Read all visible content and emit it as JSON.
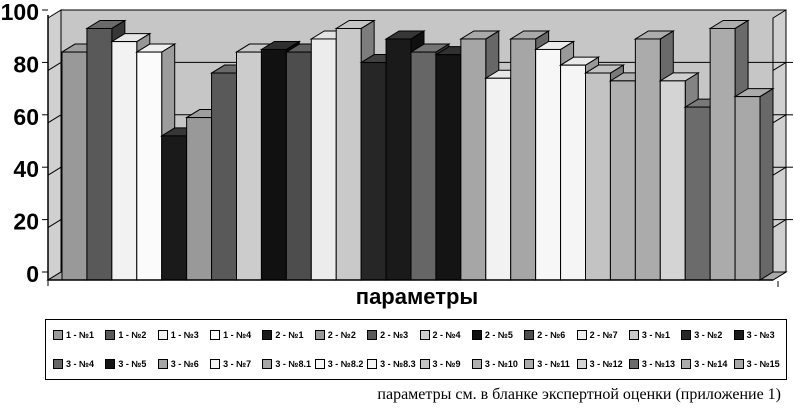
{
  "chart_data": {
    "type": "bar",
    "style": "3d-column-grayscale",
    "title": "",
    "xlabel": "параметры",
    "ylabel": "",
    "ylim": [
      0,
      100
    ],
    "yticks": [
      0,
      20,
      40,
      60,
      80,
      100
    ],
    "grid": true,
    "legend_position": "bottom",
    "categories": [
      "1 - №1",
      "1 - №2",
      "1 - №3",
      "1 - №4",
      "2 - №1",
      "2 - №2",
      "2 - №3",
      "2 - №4",
      "2 - №5",
      "2 - №6",
      "2 - №7",
      "3 - №1",
      "3 - №2",
      "3 - №3",
      "3 - №4",
      "3 - №5",
      "3 - №6",
      "3 - №7",
      "3 - №8.1",
      "3 - №8.2",
      "3 - №8.3",
      "3 - №9",
      "3 - №10",
      "3 - №11",
      "3 - №12",
      "3 - №13",
      "3 - №14",
      "3 - №15"
    ],
    "values": [
      87,
      96,
      91,
      87,
      55,
      62,
      79,
      87,
      88,
      87,
      92,
      96,
      83,
      92,
      87,
      86,
      92,
      77,
      92,
      88,
      82,
      79,
      76,
      92,
      76,
      66,
      96,
      70
    ],
    "bar_colors": [
      "#999999",
      "#595959",
      "#f2f2f2",
      "#fbfbfb",
      "#1a1a1a",
      "#999999",
      "#595959",
      "#cccccc",
      "#111111",
      "#4d4d4d",
      "#ececec",
      "#c9c9c9",
      "#262626",
      "#1a1a1a",
      "#666666",
      "#141414",
      "#a6a6a6",
      "#f2f2f2",
      "#a6a6a6",
      "#f7f7f7",
      "#f5f5f5",
      "#c3c3c3",
      "#b0b0b0",
      "#ababab",
      "#d4d4d4",
      "#6b6b6b",
      "#ababab",
      "#a8a8a8"
    ]
  },
  "caption": "параметры см. в бланке экспертной оценки (приложение 1)",
  "colors": {
    "back_wall": "#c6c6c6",
    "side_wall": "#d0d0d0",
    "floor": "#a9a9a9",
    "axis": "#000000",
    "bar_outline": "#000000"
  }
}
